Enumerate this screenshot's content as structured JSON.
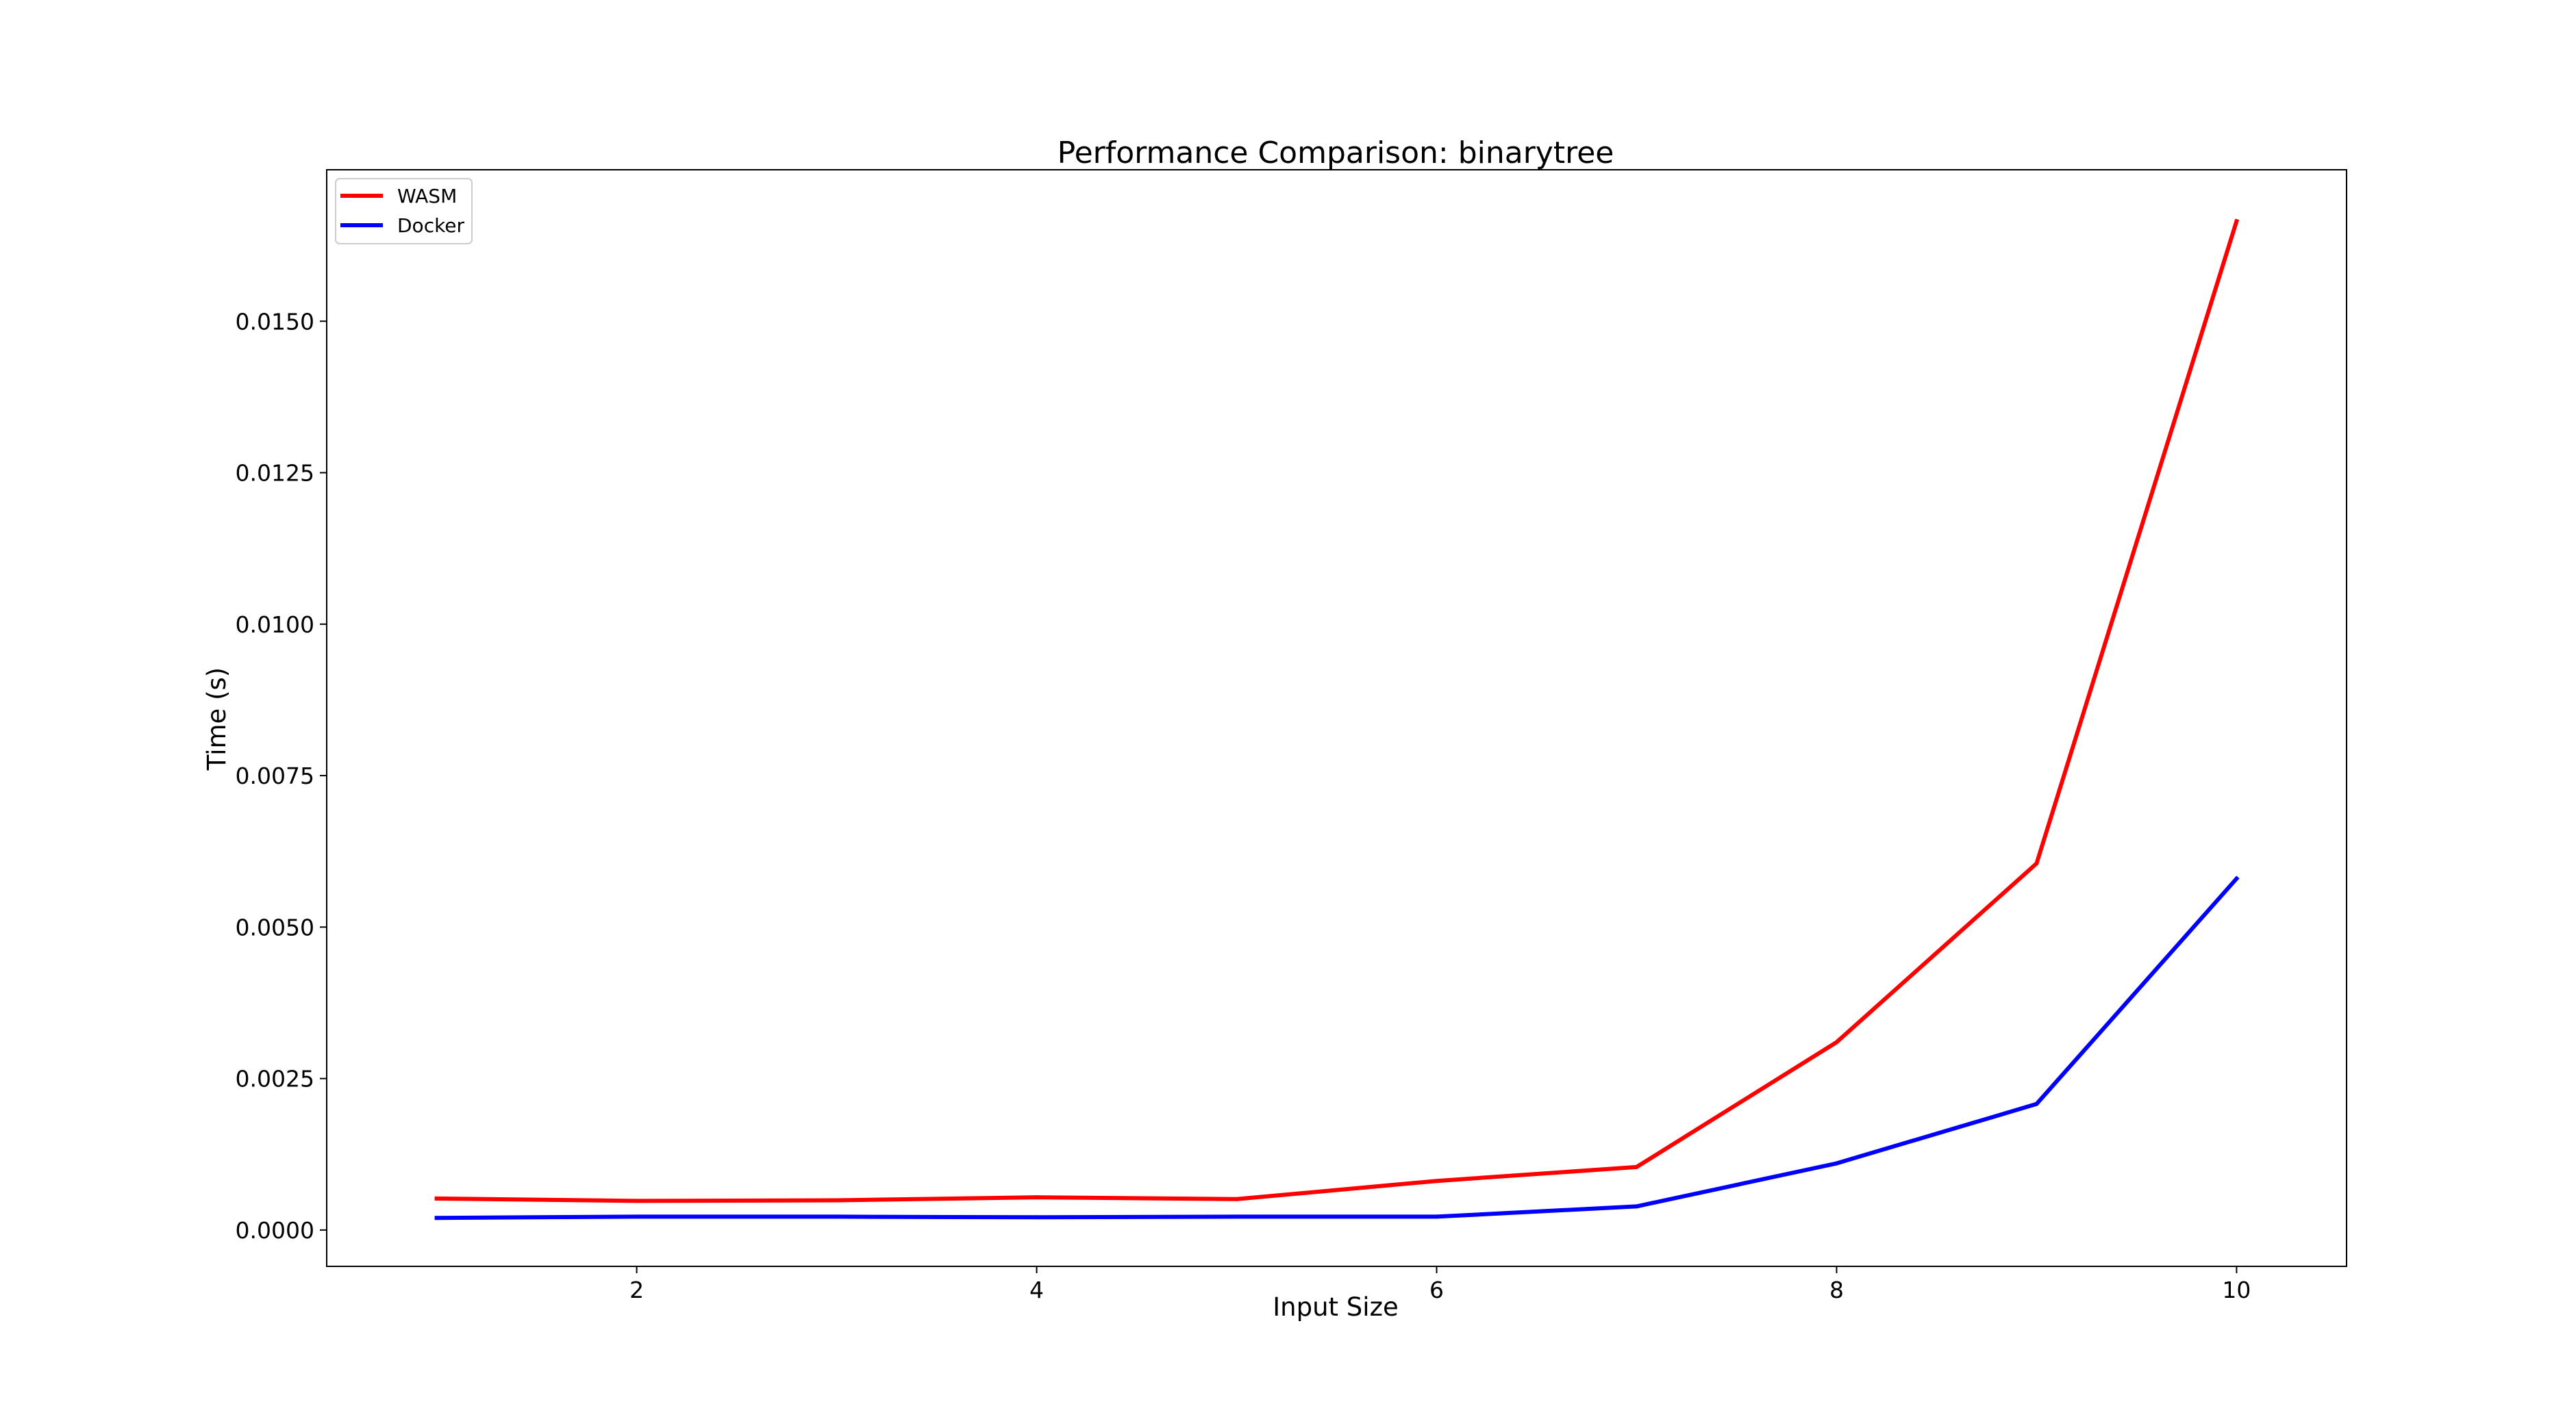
{
  "chart_data": {
    "type": "line",
    "title": "Performance Comparison: binarytree",
    "xlabel": "Input Size",
    "ylabel": "Time (s)",
    "x": [
      1,
      2,
      3,
      4,
      5,
      6,
      7,
      8,
      9,
      10
    ],
    "xlim": [
      0.45,
      10.55
    ],
    "ylim": [
      -0.0006,
      0.0175
    ],
    "xticks": [
      2,
      4,
      6,
      8,
      10
    ],
    "xtick_labels": [
      "2",
      "4",
      "6",
      "8",
      "10"
    ],
    "yticks": [
      0.0,
      0.0025,
      0.005,
      0.0075,
      0.01,
      0.0125,
      0.015
    ],
    "ytick_labels": [
      "0.0000",
      "0.0025",
      "0.0050",
      "0.0075",
      "0.0100",
      "0.0125",
      "0.0150"
    ],
    "grid": false,
    "legend_position": "top-left",
    "series": [
      {
        "name": "WASM",
        "color": "#ff0000",
        "values": [
          0.00052,
          0.00048,
          0.00049,
          0.00054,
          0.00051,
          0.00081,
          0.00104,
          0.0031,
          0.00605,
          0.01665
        ]
      },
      {
        "name": "Docker",
        "color": "#0000ff",
        "values": [
          0.0002,
          0.00022,
          0.00022,
          0.00021,
          0.00022,
          0.00022,
          0.00039,
          0.0011,
          0.00208,
          0.0058
        ]
      }
    ]
  }
}
